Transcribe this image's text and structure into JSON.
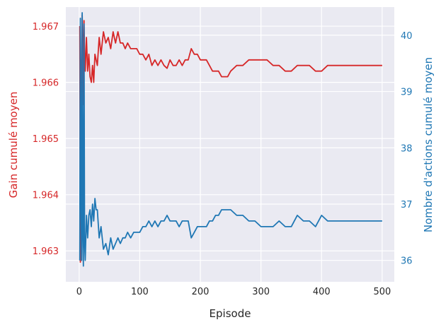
{
  "chart_data": {
    "type": "line",
    "xlabel": "Episode",
    "x_ticks": [
      0,
      100,
      200,
      300,
      400,
      500
    ],
    "xlim": [
      -22,
      520
    ],
    "left_axis": {
      "label": "Gain cumulé moyen",
      "color": "#d62728",
      "ticks": [
        "1.963",
        "1.964",
        "1.965",
        "1.966",
        "1.967"
      ],
      "tick_values": [
        1.963,
        1.964,
        1.965,
        1.966,
        1.967
      ],
      "ylim": [
        1.96245,
        1.96734
      ]
    },
    "right_axis": {
      "label": "Nombre d'actions cumulé moyen",
      "color": "#1f77b4",
      "ticks": [
        "36",
        "37",
        "38",
        "39",
        "40"
      ],
      "tick_values": [
        36,
        37,
        38,
        39,
        40
      ],
      "ylim": [
        35.62,
        40.5
      ]
    },
    "series": [
      {
        "axis": "left",
        "color": "#d62728",
        "x": [
          1,
          2,
          3,
          4,
          5,
          6,
          7,
          8,
          9,
          10,
          12,
          14,
          16,
          18,
          20,
          22,
          24,
          26,
          28,
          30,
          33,
          36,
          40,
          44,
          48,
          52,
          56,
          60,
          64,
          68,
          72,
          76,
          80,
          85,
          90,
          95,
          100,
          105,
          110,
          115,
          120,
          125,
          130,
          135,
          140,
          145,
          150,
          155,
          160,
          165,
          170,
          175,
          180,
          185,
          190,
          195,
          200,
          205,
          210,
          215,
          220,
          225,
          230,
          235,
          240,
          245,
          250,
          260,
          270,
          280,
          290,
          300,
          310,
          320,
          330,
          340,
          350,
          360,
          370,
          380,
          390,
          400,
          410,
          420,
          430,
          440,
          450,
          460,
          470,
          480,
          490,
          500
        ],
        "y": [
          1.967,
          1.9628,
          1.9664,
          1.9662,
          1.9672,
          1.9667,
          1.9656,
          1.9671,
          1.9665,
          1.9662,
          1.9668,
          1.9662,
          1.9665,
          1.9661,
          1.966,
          1.9663,
          1.966,
          1.9665,
          1.9664,
          1.9663,
          1.9668,
          1.9665,
          1.9669,
          1.9667,
          1.9668,
          1.9666,
          1.9669,
          1.9667,
          1.9669,
          1.9667,
          1.9667,
          1.9666,
          1.9667,
          1.9666,
          1.9666,
          1.9666,
          1.9665,
          1.9665,
          1.9664,
          1.9665,
          1.9663,
          1.9664,
          1.9663,
          1.9664,
          1.9663,
          1.96625,
          1.9664,
          1.9663,
          1.9663,
          1.9664,
          1.9663,
          1.9664,
          1.9664,
          1.9666,
          1.9665,
          1.9665,
          1.9664,
          1.9664,
          1.9664,
          1.9663,
          1.9662,
          1.9662,
          1.9662,
          1.9661,
          1.9661,
          1.9661,
          1.9662,
          1.9663,
          1.9663,
          1.9664,
          1.9664,
          1.9664,
          1.9664,
          1.9663,
          1.9663,
          1.9662,
          1.9662,
          1.9663,
          1.9663,
          1.9663,
          1.9662,
          1.9662,
          1.9663,
          1.9663,
          1.9663,
          1.9663,
          1.9663,
          1.9663,
          1.9663,
          1.9663,
          1.9663,
          1.9663
        ]
      },
      {
        "axis": "right",
        "color": "#1f77b4",
        "x": [
          1,
          2,
          3,
          4,
          5,
          6,
          7,
          8,
          9,
          10,
          12,
          14,
          16,
          18,
          20,
          22,
          24,
          26,
          28,
          30,
          33,
          36,
          40,
          44,
          48,
          52,
          56,
          60,
          64,
          68,
          72,
          76,
          80,
          85,
          90,
          95,
          100,
          105,
          110,
          115,
          120,
          125,
          130,
          135,
          140,
          145,
          150,
          155,
          160,
          165,
          170,
          175,
          180,
          185,
          190,
          195,
          200,
          205,
          210,
          215,
          220,
          225,
          230,
          235,
          240,
          245,
          250,
          260,
          270,
          280,
          290,
          300,
          310,
          320,
          330,
          340,
          350,
          360,
          370,
          380,
          390,
          400,
          410,
          420,
          430,
          440,
          450,
          460,
          470,
          480,
          490,
          500
        ],
        "y": [
          36.0,
          40.3,
          37.3,
          36.0,
          40.4,
          36.5,
          35.9,
          40.2,
          36.3,
          36.0,
          36.8,
          36.4,
          36.8,
          36.9,
          36.6,
          37.0,
          36.7,
          37.1,
          36.9,
          36.9,
          36.4,
          36.6,
          36.2,
          36.3,
          36.1,
          36.4,
          36.2,
          36.3,
          36.4,
          36.3,
          36.4,
          36.4,
          36.5,
          36.4,
          36.5,
          36.5,
          36.5,
          36.6,
          36.6,
          36.7,
          36.6,
          36.7,
          36.6,
          36.7,
          36.7,
          36.8,
          36.7,
          36.7,
          36.7,
          36.6,
          36.7,
          36.7,
          36.7,
          36.4,
          36.5,
          36.6,
          36.6,
          36.6,
          36.6,
          36.7,
          36.7,
          36.8,
          36.8,
          36.9,
          36.9,
          36.9,
          36.9,
          36.8,
          36.8,
          36.7,
          36.7,
          36.6,
          36.6,
          36.6,
          36.7,
          36.6,
          36.6,
          36.8,
          36.7,
          36.7,
          36.6,
          36.8,
          36.7,
          36.7,
          36.7,
          36.7,
          36.7,
          36.7,
          36.7,
          36.7,
          36.7,
          36.7
        ]
      }
    ],
    "grid": true,
    "background": "#eaeaf2"
  }
}
